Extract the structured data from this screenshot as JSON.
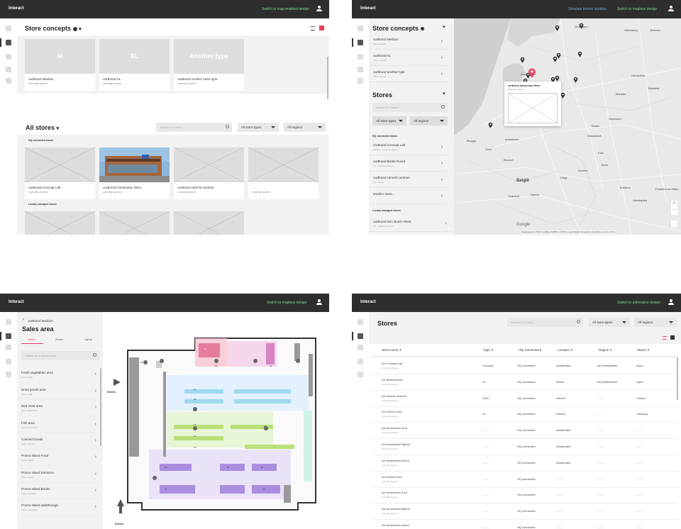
{
  "app_name": "Interact",
  "colors": {
    "accent": "#e4405f",
    "topbar": "#2e2e2e",
    "green_link": "#7bd88f",
    "blue_link": "#6fa8dc"
  },
  "s1": {
    "switch_link": "Switch to map-enabled design",
    "concepts_title": "Store concepts",
    "concepts": [
      {
        "tile": "M",
        "name": "ourBrand Medium",
        "status": "Currently opened"
      },
      {
        "tile": "XL",
        "name": "ourBrand XL",
        "status": "currently opened"
      },
      {
        "tile": "Another type",
        "name": "ourBrand Another store type",
        "status": "currently opened"
      }
    ],
    "stores_title": "All stores",
    "search_placeholder": "Search for a store",
    "store_types": "All store types",
    "regions": "All regions",
    "hq_section": "HQ connected stores",
    "stores": [
      {
        "name": "ourBrand Concept Lab",
        "status": "Currently opened"
      },
      {
        "name": "ourBrand Amsterdam West",
        "status": "currently opened"
      },
      {
        "name": "ourBrand Utrecht centrum",
        "status": "currently opened"
      },
      {
        "name": "...",
        "status": "currently opened"
      }
    ],
    "local_section": "Locally managed stores"
  },
  "s2": {
    "link_simulate": "Simulate known location",
    "link_switch": "Switch to mapless design",
    "concepts_title": "Store concepts",
    "concepts": [
      {
        "name": "ourBrand Medium",
        "sub": "Store concept"
      },
      {
        "name": "ourBrand XL",
        "sub": "Store concept"
      },
      {
        "name": "ourBrand another type",
        "sub": "Store concept"
      }
    ],
    "stores_title": "Stores",
    "search_placeholder": "Search for a store",
    "store_types": "All store types",
    "regions": "All regions",
    "hq_section": "HQ connected stores",
    "stores": [
      {
        "name": "ourBrand Concept Lab",
        "sub": "Medium - currently opened"
      },
      {
        "name": "ourBrand Breda Noord",
        "sub": "XL - currently opened"
      },
      {
        "name": "ourBrand Utrecht centrum",
        "sub": "XL - closed"
      },
      {
        "name": "another store...",
        "sub": ""
      }
    ],
    "local_section": "Locally managed stores",
    "local_stores": [
      {
        "name": "ourBrand Den Bosch West",
        "sub": "XL - currently opened"
      }
    ],
    "popup_name": "ourBrand Amsterdam West",
    "popup_status": "currently opened",
    "map_labels": [
      "Groningen",
      "Oldenburg",
      "Bremen",
      "Amsterdam",
      "Osnabrück",
      "Bielefeld",
      "Münster",
      "Den Haag",
      "Dortmund",
      "Rotterdam",
      "Essen",
      "Düsseldorf",
      "Antwerpen",
      "Brugge",
      "Gent",
      "Brussel",
      "Köln",
      "Bonn",
      "België",
      "Koblenz",
      "Frankfurt am Main",
      "Wiesbaden",
      "Liège",
      "Namur",
      "Charleroi",
      "Aachen"
    ],
    "map_footer": "Kaartgegevens ©2019 GeoBasis-DE/BKG (©2009),Google   België   Voorwaarden   Feedback versturen   20 km",
    "google": "Google"
  },
  "s3": {
    "switch_link": "Switch to mapless design",
    "back_label": "ourBrand Medium",
    "title": "Sales area",
    "tabs": [
      "Areas",
      "Zones",
      "Lights"
    ],
    "search_placeholder": "Search for a named area",
    "areas": [
      {
        "name": "Fresh vegetables area",
        "sub": "scene: High"
      },
      {
        "name": "Dried goods area",
        "sub": "scene: High"
      },
      {
        "name": "Red meat area",
        "sub": "scene: MANUAL"
      },
      {
        "name": "Fish area",
        "sub": "scene: Fresh fish"
      },
      {
        "name": "Canned Goods",
        "sub": "scene: Medium"
      },
      {
        "name": "Promo Island Food",
        "sub": "scene: Spark"
      },
      {
        "name": "Promo Island Entrance",
        "sub": "scene: Spark"
      },
      {
        "name": "Promo Island Books",
        "sub": "scene: Reading"
      },
      {
        "name": "Promo Island walkthrough",
        "sub": "scene: Spotlights"
      }
    ],
    "entree_label": "Entree",
    "entree_bottom": "Entree",
    "zone_numbers": [
      "16",
      "25",
      "26",
      "21",
      "28",
      "27",
      "29",
      "18",
      "13",
      "19",
      "22",
      "23",
      "24",
      "33",
      "34",
      "20",
      "4",
      "30",
      "40",
      "6",
      "7",
      "8",
      "9",
      "10",
      "11",
      "12",
      "3"
    ]
  },
  "s4": {
    "switch_link": "Switch to alternative design",
    "title": "Stores",
    "search_placeholder": "Search for a store",
    "store_types": "All store types",
    "regions": "All regions",
    "columns": [
      "Store name",
      "Type",
      "HQ connected",
      "Location",
      "Region",
      "Status"
    ],
    "rows": [
      {
        "name": "AH Concept Lab",
        "sub": "Currently opened",
        "type": "Concept",
        "hq": "HQ connected",
        "loc": "Amsterdam",
        "region": "the Netherlands",
        "status": "Open"
      },
      {
        "name": "AH Breda Noord",
        "sub": "currently opened",
        "type": "XL",
        "hq": "HQ connected",
        "loc": "Breda",
        "region": "the Netherlands",
        "status": "Open"
      },
      {
        "name": "AH Utrecht centrum",
        "sub": "currently opened",
        "type": "ToGo",
        "hq": "HQ connected",
        "loc": "Utrecht",
        "region": "........",
        "status": "Closed"
      },
      {
        "name": "AH Utrecht Zuid",
        "sub": "currently opened",
        "type": "XL",
        "hq": "HQ connected",
        "loc": "Utrecht",
        "region": "........",
        "status": "Cleaning"
      },
      {
        "name": "AH Amsterdam Zuid",
        "sub": "currently opened",
        "type": "........",
        "hq": "HQ connected",
        "loc": "Amsterdam",
        "region": "........",
        "status": "........"
      },
      {
        "name": "AH Amsterdam Bijlmer",
        "sub": "currently opened",
        "type": "........",
        "hq": "HQ connected",
        "loc": "Amsterdam",
        "region": "........",
        "status": "........"
      },
      {
        "name": "AH Amsterdam Noord",
        "sub": "currently opened",
        "type": "........",
        "hq": "HQ connected",
        "loc": "Amsterdam",
        "region": "........",
        "status": "........"
      },
      {
        "name": "AH Utrecht Zuid",
        "sub": "currently opened",
        "type": "........",
        "hq": "HQ connected",
        "loc": "........",
        "region": "........",
        "status": "........"
      },
      {
        "name": "AH Amsterdam Zuid",
        "sub": "currently opened",
        "type": "........",
        "hq": "HQ connected",
        "loc": "........",
        "region": "........",
        "status": "........"
      },
      {
        "name": "AH Amsterdam Bijlmer",
        "sub": "currently opened",
        "type": "........",
        "hq": "HQ connected",
        "loc": "........",
        "region": "........",
        "status": "........"
      },
      {
        "name": "AH Amsterdam Noord",
        "sub": "currently opened",
        "type": "........",
        "hq": "HQ connected",
        "loc": "........",
        "region": "........",
        "status": "........"
      }
    ]
  }
}
